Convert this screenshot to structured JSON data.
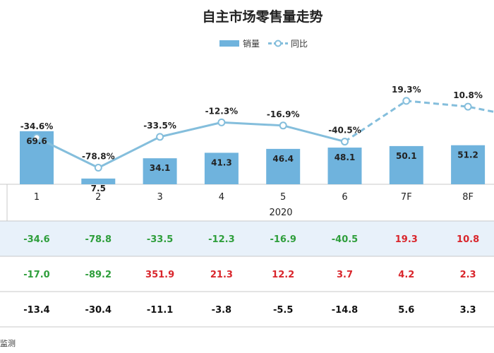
{
  "chart_data": {
    "type": "bar",
    "title": "自主市场零售量走势",
    "categories": [
      "1",
      "2",
      "3",
      "4",
      "5",
      "6",
      "7F",
      "8F"
    ],
    "year_label": "2020",
    "series": [
      {
        "name": "销量",
        "kind": "bar",
        "color": "#6FB3DD",
        "values": [
          69.6,
          7.5,
          34.1,
          41.3,
          46.4,
          48.1,
          50.1,
          51.2
        ]
      },
      {
        "name": "同比",
        "kind": "line",
        "color": "#84BEDC",
        "values": [
          -34.6,
          -78.8,
          -33.5,
          -12.3,
          -16.9,
          -40.5,
          19.3,
          10.8
        ],
        "forecast_from_index": 6
      }
    ],
    "bar_labels": [
      "69.6",
      "7.5",
      "34.1",
      "41.3",
      "46.4",
      "48.1",
      "50.1",
      "51.2"
    ],
    "line_labels": [
      "-34.6%",
      "-78.8%",
      "-33.5%",
      "-12.3%",
      "-16.9%",
      "-40.5%",
      "19.3%",
      "10.8%"
    ],
    "table_rows": [
      [
        "-34.6",
        "-78.8",
        "-33.5",
        "-12.3",
        "-16.9",
        "-40.5",
        "19.3",
        "10.8"
      ],
      [
        "-17.0",
        "-89.2",
        "351.9",
        "21.3",
        "12.2",
        "3.7",
        "4.2",
        "2.3"
      ],
      [
        "-13.4",
        "-30.4",
        "-11.1",
        "-3.8",
        "-5.5",
        "-14.8",
        "5.6",
        "3.3"
      ]
    ],
    "source_fragment": "监测"
  },
  "colors": {
    "positive": "#D9262C",
    "negative": "#2E9E3B",
    "neutral": "#111111",
    "highlight_row": "#E8F1FA",
    "grid": "#C9C9C9"
  }
}
